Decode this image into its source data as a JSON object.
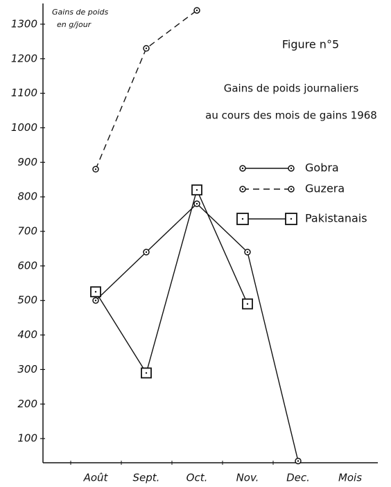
{
  "chart_data": {
    "type": "line",
    "title": "Figure n°5",
    "subtitle": [
      "Gains de poids journaliers",
      "au cours des mois de gains 1968"
    ],
    "y_label": [
      "Gains de poids",
      "en g/jour"
    ],
    "x_label": "Mois",
    "categories": [
      "Août",
      "Sept.",
      "Oct.",
      "Nov.",
      "Dec."
    ],
    "series": [
      {
        "name": "Gobra",
        "color": "#111111",
        "line_style": "solid",
        "marker": "circle",
        "values": [
          500,
          640,
          780,
          640,
          35
        ]
      },
      {
        "name": "Guzera",
        "color": "#111111",
        "line_style": "dashed",
        "marker": "circle",
        "values": [
          880,
          1230,
          1340,
          null,
          null
        ]
      },
      {
        "name": "Pakistanais",
        "color": "#111111",
        "line_style": "solid",
        "marker": "square",
        "values": [
          525,
          290,
          820,
          490,
          null
        ]
      }
    ],
    "ylim": [
      30,
      1360
    ],
    "yticks": [
      100,
      200,
      300,
      400,
      500,
      600,
      700,
      800,
      900,
      1000,
      1100,
      1200,
      1300
    ],
    "grid": false
  }
}
